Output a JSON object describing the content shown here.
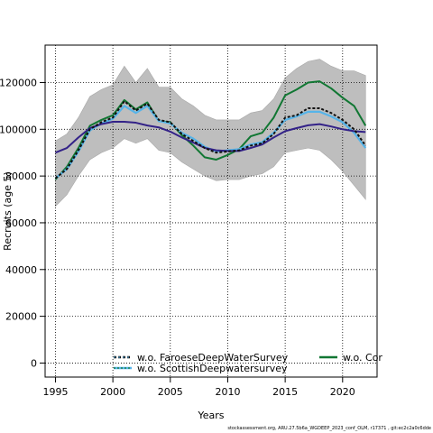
{
  "chart_data": {
    "type": "line",
    "xlabel": "Years",
    "ylabel": "Recruits (age 5)",
    "xlim": [
      1994.1,
      2023.0
    ],
    "ylim": [
      -6000,
      136000
    ],
    "xticks": [
      1995,
      2000,
      2005,
      2010,
      2015,
      2020
    ],
    "xtick_labels": [
      "1995",
      "2000",
      "2005",
      "2010",
      "2015",
      "2020"
    ],
    "yticks": [
      0,
      20000,
      40000,
      60000,
      80000,
      100000,
      120000
    ],
    "ytick_labels": [
      "0",
      "20000",
      "40000",
      "60000",
      "80000",
      "100000",
      "120000"
    ],
    "grid": true,
    "legend_position": "bottom",
    "band": {
      "x": [
        1995,
        1996,
        1997,
        1998,
        1999,
        2000,
        2001,
        2002,
        2003,
        2004,
        2005,
        2006,
        2007,
        2008,
        2009,
        2010,
        2011,
        2012,
        2013,
        2014,
        2015,
        2016,
        2017,
        2018,
        2019,
        2020,
        2021,
        2022
      ],
      "upper": [
        95000,
        98000,
        105000,
        114000,
        117000,
        119000,
        127000,
        120000,
        126000,
        118000,
        118000,
        113000,
        110000,
        106000,
        104000,
        104000,
        104000,
        107000,
        108000,
        113000,
        122000,
        126000,
        129000,
        130000,
        127000,
        125000,
        125000,
        123000
      ],
      "lower": [
        67000,
        72000,
        80000,
        87000,
        90000,
        92000,
        96000,
        94000,
        96000,
        91000,
        90000,
        86000,
        83000,
        80000,
        78000,
        78500,
        78500,
        80000,
        81000,
        84000,
        90000,
        91000,
        92000,
        91000,
        87000,
        82000,
        76000,
        70000
      ]
    },
    "series": [
      {
        "name": "",
        "color": "#332288",
        "dash": "solid",
        "values": [
          90000,
          92000,
          96500,
          100500,
          102200,
          103200,
          103200,
          102800,
          101600,
          100800,
          99000,
          96500,
          94300,
          92000,
          91000,
          90700,
          90700,
          92000,
          93500,
          96500,
          99200,
          100500,
          101700,
          102200,
          101200,
          100000,
          99200,
          98800
        ]
      },
      {
        "name": "w.o. FaroeseDeepWaterSurvey",
        "color": "#111111",
        "dash": "3,2",
        "values": [
          79000,
          83000,
          91000,
          100000,
          103000,
          105000,
          112000,
          108000,
          111000,
          104000,
          103000,
          98000,
          95000,
          92000,
          90000,
          90500,
          91000,
          93000,
          94000,
          98000,
          105000,
          106000,
          109000,
          109000,
          107000,
          104000,
          100000,
          93000
        ]
      },
      {
        "name": "w.o. ScottishDeepwatersurvey",
        "color": "#56b4e9",
        "dash": "solid",
        "values": [
          79000,
          83000,
          90500,
          99500,
          102500,
          104500,
          110000,
          107000,
          110000,
          103500,
          102500,
          98500,
          96000,
          92500,
          90500,
          91000,
          91500,
          93500,
          94500,
          98500,
          104000,
          105500,
          107500,
          107500,
          105500,
          103000,
          98500,
          92000
        ]
      },
      {
        "name": "w.o. Cor",
        "color": "#117733",
        "dash": "solid",
        "values": [
          78500,
          84000,
          92000,
          101500,
          104000,
          106000,
          112500,
          108500,
          111500,
          103500,
          103000,
          97500,
          93000,
          88000,
          87000,
          89000,
          91500,
          97000,
          98500,
          105000,
          114500,
          117000,
          120000,
          120500,
          117500,
          113500,
          110000,
          101500
        ]
      }
    ],
    "footer": "stockassessment.org, ARU.27.5b6a_WGDEEP_2023_conf_OLM, r17371 , git:ec2c2a0c6dde"
  }
}
